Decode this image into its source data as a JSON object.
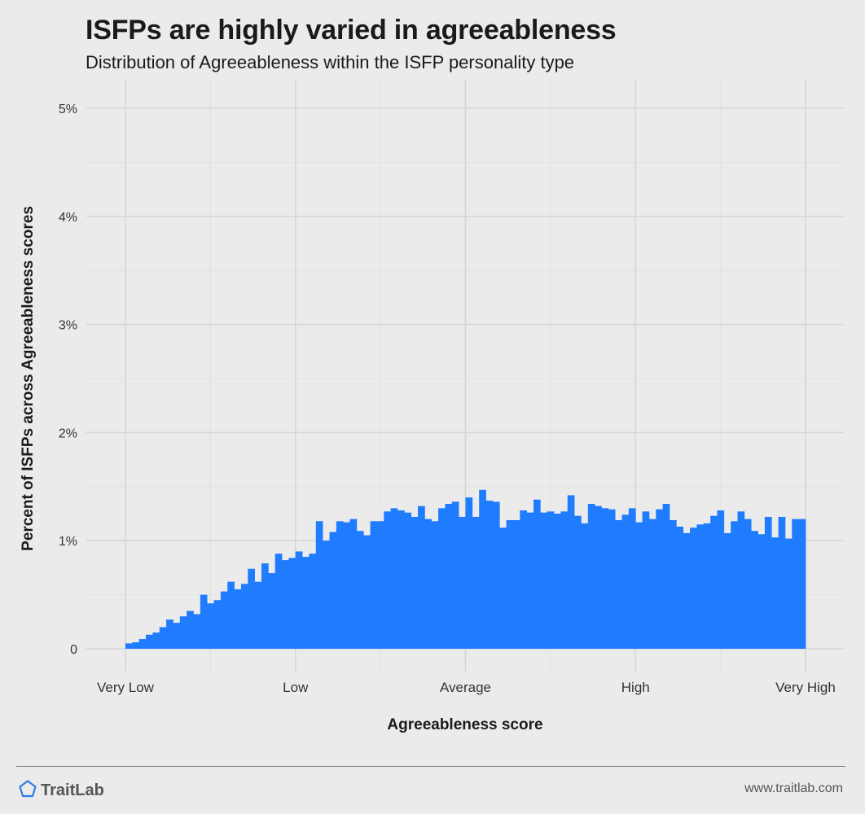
{
  "header": {
    "title": "ISFPs are highly varied in agreeableness",
    "subtitle": "Distribution of Agreeableness within the ISFP personality type"
  },
  "footer": {
    "brand": "TraitLab",
    "site": "www.traitlab.com",
    "logo_icon": "pentagon-icon"
  },
  "colors": {
    "background": "#ebebeb",
    "bar": "#1f7cff",
    "grid_major": "#d6d6d6",
    "grid_minor": "#e2e2e2",
    "logo": "#2f7fe6"
  },
  "chart_data": {
    "type": "bar",
    "xlabel": "Agreeableness score",
    "ylabel": "Percent of ISFPs across Agreeableness scores",
    "x_range": [
      0,
      100
    ],
    "x_ticks": [
      {
        "value": 0,
        "label": "Very Low"
      },
      {
        "value": 25,
        "label": "Low"
      },
      {
        "value": 50,
        "label": "Average"
      },
      {
        "value": 75,
        "label": "High"
      },
      {
        "value": 100,
        "label": "Very High"
      }
    ],
    "ylim": [
      0,
      5
    ],
    "y_ticks": [
      {
        "value": 0,
        "label": "0"
      },
      {
        "value": 1,
        "label": "1%"
      },
      {
        "value": 2,
        "label": "2%"
      },
      {
        "value": 3,
        "label": "3%"
      },
      {
        "value": 4,
        "label": "4%"
      },
      {
        "value": 5,
        "label": "5%"
      }
    ],
    "grid": true,
    "bin_start": 0,
    "bin_end": 100,
    "values": [
      0.05,
      0.06,
      0.09,
      0.13,
      0.15,
      0.2,
      0.27,
      0.24,
      0.3,
      0.35,
      0.32,
      0.5,
      0.42,
      0.45,
      0.53,
      0.62,
      0.55,
      0.6,
      0.74,
      0.62,
      0.79,
      0.7,
      0.88,
      0.82,
      0.84,
      0.9,
      0.85,
      0.88,
      1.18,
      1.0,
      1.08,
      1.18,
      1.17,
      1.2,
      1.09,
      1.05,
      1.18,
      1.18,
      1.27,
      1.3,
      1.28,
      1.26,
      1.22,
      1.32,
      1.2,
      1.18,
      1.3,
      1.34,
      1.36,
      1.22,
      1.4,
      1.22,
      1.47,
      1.37,
      1.36,
      1.12,
      1.19,
      1.19,
      1.28,
      1.26,
      1.38,
      1.26,
      1.27,
      1.25,
      1.27,
      1.42,
      1.23,
      1.16,
      1.34,
      1.32,
      1.3,
      1.29,
      1.19,
      1.24,
      1.3,
      1.17,
      1.27,
      1.2,
      1.29,
      1.34,
      1.19,
      1.13,
      1.07,
      1.12,
      1.15,
      1.16,
      1.23,
      1.28,
      1.07,
      1.18,
      1.27,
      1.2,
      1.09,
      1.06,
      1.22,
      1.03,
      1.22,
      1.02,
      1.2,
      1.2
    ]
  }
}
